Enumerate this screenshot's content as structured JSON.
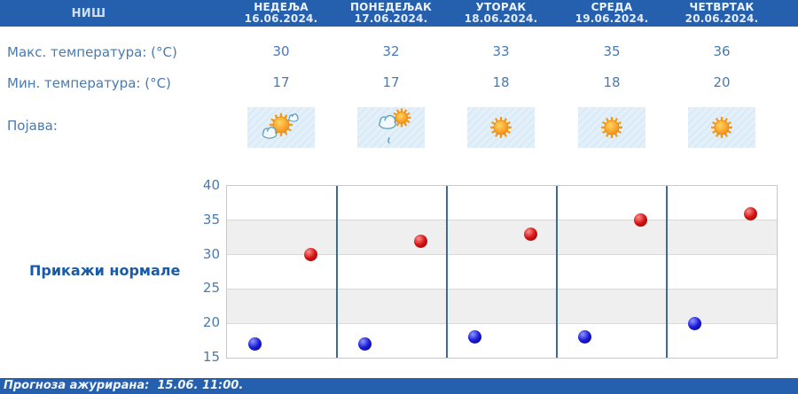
{
  "header": {
    "city": "НИШ",
    "days": [
      {
        "name": "НЕДЕЉА",
        "date": "16.06.2024."
      },
      {
        "name": "ПОНЕДЕЉАК",
        "date": "17.06.2024."
      },
      {
        "name": "УТОРАК",
        "date": "18.06.2024."
      },
      {
        "name": "СРЕДА",
        "date": "19.06.2024."
      },
      {
        "name": "ЧЕТВРТАК",
        "date": "20.06.2024."
      }
    ]
  },
  "rows": {
    "max_label": "Макс. температура: (°C)",
    "min_label": "Мин. температура: (°C)",
    "phenomenon_label": "Појава:",
    "max_values": [
      "30",
      "32",
      "33",
      "35",
      "36"
    ],
    "min_values": [
      "17",
      "17",
      "18",
      "18",
      "20"
    ],
    "icons": [
      "sun-behind-clouds-icon",
      "cloud-rain-sun-icon",
      "sunny-icon",
      "sunny-icon",
      "sunny-icon"
    ]
  },
  "normals_button_label": "Прикажи нормале",
  "footer": {
    "updated_text": "Прогноза ажурирана:  15.06. 11:00."
  },
  "colors": {
    "header_bg": "#2560ae",
    "footer_bg": "#2560ae",
    "text_blue": "#4a7aae",
    "link_blue": "#1a5aa6",
    "max_dot": "#d41313",
    "min_dot": "#1b1bd4",
    "band_gray": "#efefef",
    "separator_blue": "#3a6b9e",
    "icon_cell_bg": "#dcecf7"
  },
  "chart_data": {
    "type": "scatter",
    "categories": [
      "16.06.2024.",
      "17.06.2024.",
      "18.06.2024.",
      "19.06.2024.",
      "20.06.2024."
    ],
    "series": [
      {
        "name": "Макс. температура (°C)",
        "color": "#d41313",
        "values": [
          30,
          32,
          33,
          35,
          36
        ]
      },
      {
        "name": "Мин. температура (°C)",
        "color": "#1b1bd4",
        "values": [
          17,
          17,
          18,
          18,
          20
        ]
      }
    ],
    "title": "",
    "xlabel": "",
    "ylabel": "",
    "ylim": [
      15,
      40
    ],
    "yticks": [
      40,
      35,
      30,
      25,
      20,
      15
    ],
    "grid": true,
    "legend_position": "none",
    "gray_bands": [
      [
        30,
        35
      ],
      [
        20,
        25
      ]
    ]
  }
}
